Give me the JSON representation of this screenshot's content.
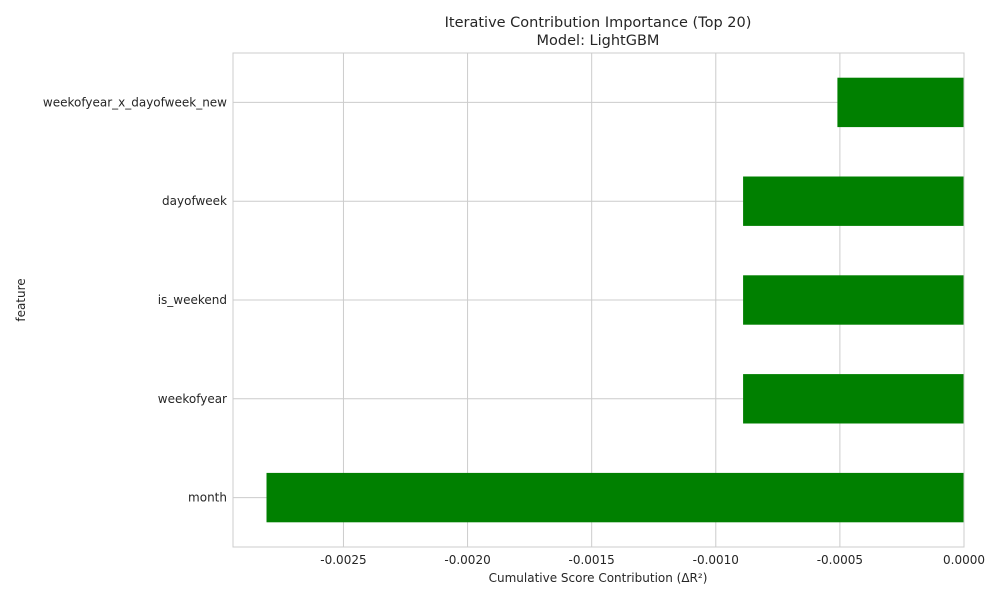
{
  "chart_data": {
    "type": "bar",
    "orientation": "horizontal",
    "title": "Iterative Contribution Importance (Top 20)",
    "subtitle": "Model: LightGBM",
    "xlabel": "Cumulative Score Contribution (ΔR²)",
    "ylabel": "feature",
    "categories": [
      "weekofyear_x_dayofweek_new",
      "dayofweek",
      "is_weekend",
      "weekofyear",
      "month"
    ],
    "values": [
      -0.00051,
      -0.00089,
      -0.00089,
      -0.00089,
      -0.00281
    ],
    "xlim": [
      -0.002945,
      0.0
    ],
    "xticks": [
      -0.0025,
      -0.002,
      -0.0015,
      -0.001,
      -0.0005,
      0.0
    ],
    "xtick_labels": [
      "-0.0025",
      "-0.0020",
      "-0.0015",
      "-0.0010",
      "-0.0005",
      "0.0000"
    ],
    "grid": true,
    "colors": {
      "bar": "#008000",
      "grid": "#cccccc",
      "spine": "#cccccc"
    }
  }
}
